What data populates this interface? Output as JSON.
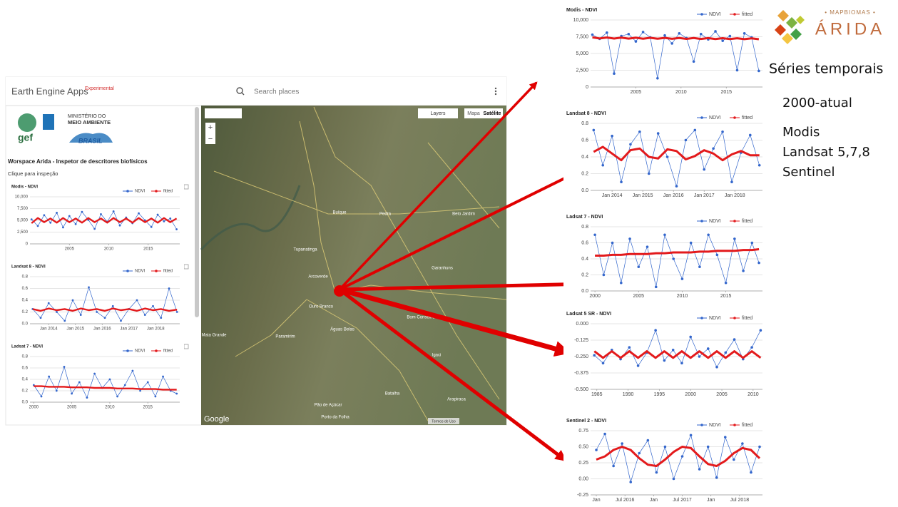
{
  "app": {
    "header": {
      "title": "Earth Engine Apps",
      "badge": "Experimental",
      "search": "Search places"
    },
    "logos": {
      "gef": "gef",
      "ministry_1": "MINISTÉRIO DO",
      "ministry_2": "MEIO AMBIENTE",
      "brasil": "BRASIL"
    },
    "workspace_title": "Worspace Arida - Inspetor de descritores biofísicos",
    "instruction": "Clique para inspeção",
    "charts": [
      {
        "type": "line",
        "title": "Modis - NDVI",
        "x": [
          2000.2,
          2001,
          2001.8,
          2002.6,
          2003.4,
          2004.2,
          2005,
          2005.8,
          2006.6,
          2007.4,
          2008.2,
          2009,
          2009.8,
          2010.6,
          2011.4,
          2012.2,
          2013,
          2013.8,
          2014.6,
          2015.4,
          2016.2,
          2017,
          2017.8,
          2018.6
        ],
        "series": [
          {
            "name": "NDVI",
            "color": "#3366cc",
            "values": [
              5200,
              3800,
              6100,
              4500,
              6600,
              3500,
              5900,
              4200,
              6800,
              5100,
              3200,
              6300,
              4700,
              6900,
              3900,
              5600,
              4400,
              6500,
              5000,
              3600,
              6200,
              4800,
              5400,
              3100
            ]
          },
          {
            "name": "fitted",
            "color": "#e31a1c",
            "values": [
              4400,
              5500,
              4600,
              5400,
              4500,
              5500,
              4600,
              5400,
              4500,
              5500,
              4600,
              5400,
              4500,
              5500,
              4600,
              5400,
              4500,
              5500,
              4600,
              5400,
              4500,
              5500,
              4600,
              5400
            ]
          }
        ],
        "xlim": [
          2000,
          2019
        ],
        "ylim": [
          0,
          10000
        ],
        "xticks": [
          2005,
          2010,
          2015
        ],
        "yticks": [
          0,
          {
            "value": 2500,
            "label": "2,500"
          },
          {
            "value": 5000,
            "label": "5,000"
          },
          {
            "value": 7500,
            "label": "7,500"
          },
          {
            "value": 10000,
            "label": "10,000"
          }
        ],
        "grid": true
      },
      {
        "type": "line",
        "title": "Landsat 8 - NDVI",
        "x": [
          2013.4,
          2013.7,
          2014,
          2014.3,
          2014.6,
          2014.9,
          2015.2,
          2015.5,
          2015.8,
          2016.1,
          2016.4,
          2016.7,
          2017,
          2017.3,
          2017.6,
          2017.9,
          2018.2,
          2018.5,
          2018.8
        ],
        "series": [
          {
            "name": "NDVI",
            "color": "#3366cc",
            "values": [
              0.25,
              0.1,
              0.35,
              0.2,
              0.05,
              0.4,
              0.15,
              0.62,
              0.2,
              0.1,
              0.3,
              0.05,
              0.25,
              0.4,
              0.15,
              0.3,
              0.1,
              0.6,
              0.2
            ]
          },
          {
            "name": "fitted",
            "color": "#e31a1c",
            "values": [
              0.25,
              0.22,
              0.26,
              0.23,
              0.25,
              0.22,
              0.26,
              0.23,
              0.25,
              0.22,
              0.26,
              0.23,
              0.25,
              0.22,
              0.26,
              0.23,
              0.25,
              0.22,
              0.24
            ]
          }
        ],
        "xlim": [
          2013.3,
          2018.9
        ],
        "ylim": [
          0,
          0.8
        ],
        "xticks": [
          {
            "value": 2014,
            "label": "Jan 2014"
          },
          {
            "value": 2015,
            "label": "Jan 2015"
          },
          {
            "value": 2016,
            "label": "Jan 2016"
          },
          {
            "value": 2017,
            "label": "Jan 2017"
          },
          {
            "value": 2018,
            "label": "Jan 2018"
          }
        ],
        "yticks": [
          {
            "value": 0,
            "label": "0.0"
          },
          0.2,
          0.4,
          0.6,
          0.8
        ],
        "grid": true
      },
      {
        "type": "line",
        "title": "Ladsat 7 - NDVI",
        "x": [
          2000,
          2001,
          2002,
          2003,
          2004,
          2005,
          2006,
          2007,
          2008,
          2009,
          2010,
          2011,
          2012,
          2013,
          2014,
          2015,
          2016,
          2017,
          2018,
          2018.8
        ],
        "series": [
          {
            "name": "NDVI",
            "color": "#3366cc",
            "values": [
              0.3,
              0.1,
              0.45,
              0.2,
              0.62,
              0.15,
              0.35,
              0.08,
              0.5,
              0.25,
              0.4,
              0.1,
              0.3,
              0.55,
              0.2,
              0.35,
              0.1,
              0.45,
              0.2,
              0.15
            ]
          },
          {
            "name": "fitted",
            "color": "#e31a1c",
            "values": [
              0.28,
              0.28,
              0.27,
              0.27,
              0.27,
              0.26,
              0.26,
              0.26,
              0.25,
              0.25,
              0.25,
              0.24,
              0.24,
              0.24,
              0.23,
              0.23,
              0.23,
              0.22,
              0.22,
              0.22
            ]
          }
        ],
        "xlim": [
          1999.5,
          2019.2
        ],
        "ylim": [
          0,
          0.8
        ],
        "xticks": [
          2000,
          2005,
          2010,
          2015
        ],
        "yticks": [
          {
            "value": 0,
            "label": "0.0"
          },
          0.2,
          0.4,
          0.6,
          0.8
        ],
        "grid": true
      }
    ]
  },
  "map": {
    "buttons": {
      "layers": "Layers",
      "map": "Mapa",
      "satellite": "Satélite"
    },
    "zoom_in": "+",
    "zoom_out": "−",
    "attribution": "Google",
    "terms": "Termos de Uso",
    "places": [
      {
        "name": "Arcoverde"
      },
      {
        "name": "Pedra"
      },
      {
        "name": "Buíque"
      },
      {
        "name": "Tupanatinga"
      },
      {
        "name": "Garanhuns"
      },
      {
        "name": "Bom Conselho"
      },
      {
        "name": "Águas Belas"
      },
      {
        "name": "Ouro Branco"
      },
      {
        "name": "Mata Grande"
      },
      {
        "name": "Batalha"
      },
      {
        "name": "Arapiraca"
      },
      {
        "name": "Igaci"
      },
      {
        "name": "Pão de Açúcar"
      },
      {
        "name": "Porto da Folha"
      },
      {
        "name": "Paramirim"
      },
      {
        "name": "Belo Jardim"
      }
    ]
  },
  "result_charts": [
    {
      "type": "line",
      "title": "Modis - NDVI",
      "x": [
        2000.2,
        2001,
        2001.8,
        2002.6,
        2003.4,
        2004.2,
        2005,
        2005.8,
        2006.6,
        2007.4,
        2008.2,
        2009,
        2009.8,
        2010.6,
        2011.4,
        2012.2,
        2013,
        2013.8,
        2014.6,
        2015.4,
        2016.2,
        2017,
        2017.8,
        2018.6
      ],
      "series": [
        {
          "name": "NDVI",
          "color": "#3366cc",
          "values": [
            7800,
            7200,
            8100,
            2000,
            7600,
            7900,
            6800,
            8200,
            7400,
            1300,
            7700,
            6500,
            8000,
            7300,
            3800,
            7900,
            7100,
            8300,
            6900,
            7600,
            2500,
            8000,
            7400,
            2400
          ]
        },
        {
          "name": "fitted",
          "color": "#e31a1c",
          "values": [
            7400,
            7250,
            7380,
            7230,
            7360,
            7220,
            7350,
            7210,
            7340,
            7200,
            7330,
            7190,
            7320,
            7180,
            7310,
            7170,
            7300,
            7160,
            7290,
            7150,
            7280,
            7140,
            7270,
            7130
          ]
        }
      ],
      "xlim": [
        2000,
        2019
      ],
      "ylim": [
        0,
        10000
      ],
      "xticks": [
        2005,
        2010,
        2015
      ],
      "yticks": [
        0,
        {
          "value": 2500,
          "label": "2,500"
        },
        {
          "value": 5000,
          "label": "5,000"
        },
        {
          "value": 7500,
          "label": "7,500"
        },
        {
          "value": 10000,
          "label": "10,000"
        }
      ],
      "grid": true
    },
    {
      "type": "line",
      "title": "Landsat 8 - NDVI",
      "x": [
        2013.4,
        2013.7,
        2014,
        2014.3,
        2014.6,
        2014.9,
        2015.2,
        2015.5,
        2015.8,
        2016.1,
        2016.4,
        2016.7,
        2017,
        2017.3,
        2017.6,
        2017.9,
        2018.2,
        2018.5,
        2018.8
      ],
      "series": [
        {
          "name": "NDVI",
          "color": "#3366cc",
          "values": [
            0.72,
            0.3,
            0.65,
            0.1,
            0.55,
            0.7,
            0.2,
            0.68,
            0.4,
            0.05,
            0.6,
            0.72,
            0.25,
            0.5,
            0.7,
            0.1,
            0.45,
            0.66,
            0.3
          ]
        },
        {
          "name": "fitted",
          "color": "#e31a1c",
          "values": [
            0.46,
            0.52,
            0.44,
            0.36,
            0.48,
            0.5,
            0.4,
            0.38,
            0.49,
            0.47,
            0.37,
            0.41,
            0.48,
            0.44,
            0.36,
            0.43,
            0.47,
            0.42,
            0.42
          ]
        }
      ],
      "xlim": [
        2013.3,
        2018.9
      ],
      "ylim": [
        0,
        0.8
      ],
      "xticks": [
        {
          "value": 2014,
          "label": "Jan 2014"
        },
        {
          "value": 2015,
          "label": "Jan 2015"
        },
        {
          "value": 2016,
          "label": "Jan 2016"
        },
        {
          "value": 2017,
          "label": "Jan 2017"
        },
        {
          "value": 2018,
          "label": "Jan 2018"
        }
      ],
      "yticks": [
        {
          "value": 0,
          "label": "0.0"
        },
        0.2,
        0.4,
        0.6,
        0.8
      ],
      "grid": true
    },
    {
      "type": "line",
      "title": "Ladsat 7 - NDVI",
      "x": [
        2000,
        2001,
        2002,
        2003,
        2004,
        2005,
        2006,
        2007,
        2008,
        2009,
        2010,
        2011,
        2012,
        2013,
        2014,
        2015,
        2016,
        2017,
        2018,
        2018.8
      ],
      "series": [
        {
          "name": "NDVI",
          "color": "#3366cc",
          "values": [
            0.7,
            0.2,
            0.6,
            0.1,
            0.65,
            0.3,
            0.55,
            0.05,
            0.7,
            0.4,
            0.15,
            0.6,
            0.3,
            0.7,
            0.45,
            0.1,
            0.65,
            0.25,
            0.6,
            0.35
          ]
        },
        {
          "name": "fitted",
          "color": "#e31a1c",
          "values": [
            0.44,
            0.44,
            0.45,
            0.45,
            0.46,
            0.46,
            0.46,
            0.47,
            0.47,
            0.48,
            0.48,
            0.48,
            0.49,
            0.49,
            0.5,
            0.5,
            0.5,
            0.51,
            0.51,
            0.52
          ]
        }
      ],
      "xlim": [
        1999.5,
        2019.2
      ],
      "ylim": [
        0,
        0.8
      ],
      "xticks": [
        2000,
        2005,
        2010,
        2015
      ],
      "yticks": [
        {
          "value": 0,
          "label": "0.0"
        },
        0.2,
        0.4,
        0.6,
        0.8
      ],
      "grid": true
    },
    {
      "type": "line",
      "title": "Ladsat 5 SR - NDVI",
      "x": [
        1984.6,
        1986,
        1987.4,
        1988.8,
        1990.2,
        1991.6,
        1993,
        1994.4,
        1995.8,
        1997.2,
        1998.6,
        2000,
        2001.4,
        2002.8,
        2004.2,
        2005.6,
        2007,
        2008.4,
        2009.8,
        2011.2
      ],
      "series": [
        {
          "name": "NDVI",
          "color": "#3366cc",
          "values": [
            -0.24,
            -0.3,
            -0.2,
            -0.27,
            -0.18,
            -0.32,
            -0.22,
            -0.05,
            -0.28,
            -0.2,
            -0.3,
            -0.1,
            -0.25,
            -0.19,
            -0.33,
            -0.22,
            -0.12,
            -0.27,
            -0.18,
            -0.05
          ]
        },
        {
          "name": "fitted",
          "color": "#e31a1c",
          "values": [
            -0.21,
            -0.26,
            -0.21,
            -0.26,
            -0.21,
            -0.26,
            -0.21,
            -0.26,
            -0.21,
            -0.26,
            -0.21,
            -0.26,
            -0.21,
            -0.26,
            -0.21,
            -0.26,
            -0.21,
            -0.26,
            -0.21,
            -0.26
          ]
        }
      ],
      "xlim": [
        1984,
        2011.5
      ],
      "ylim": [
        -0.5,
        0
      ],
      "xticks": [
        1985,
        1990,
        1995,
        2000,
        2005,
        2010
      ],
      "yticks": [
        {
          "value": 0,
          "label": "0.000"
        },
        -0.125,
        {
          "value": -0.25,
          "label": "-0.250"
        },
        -0.375,
        {
          "value": -0.5,
          "label": "-0.500"
        }
      ],
      "grid": true
    },
    {
      "type": "line",
      "title": "Sentinel 2 - NDVI",
      "x": [
        2016,
        2016.15,
        2016.3,
        2016.45,
        2016.6,
        2016.75,
        2016.9,
        2017.05,
        2017.2,
        2017.35,
        2017.5,
        2017.65,
        2017.8,
        2017.95,
        2018.1,
        2018.25,
        2018.4,
        2018.55,
        2018.7,
        2018.85
      ],
      "series": [
        {
          "name": "NDVI",
          "color": "#3366cc",
          "values": [
            0.45,
            0.7,
            0.2,
            0.55,
            -0.05,
            0.4,
            0.6,
            0.1,
            0.5,
            0,
            0.35,
            0.68,
            0.15,
            0.5,
            0.02,
            0.65,
            0.3,
            0.55,
            0.1,
            0.5
          ]
        },
        {
          "name": "fitted",
          "color": "#e31a1c",
          "values": [
            0.3,
            0.35,
            0.45,
            0.5,
            0.45,
            0.32,
            0.22,
            0.2,
            0.3,
            0.42,
            0.5,
            0.48,
            0.35,
            0.23,
            0.2,
            0.28,
            0.4,
            0.48,
            0.45,
            0.32
          ]
        }
      ],
      "xlim": [
        2015.9,
        2018.9
      ],
      "ylim": [
        -0.25,
        0.75
      ],
      "xticks": [
        {
          "value": 2016,
          "label": "Jan"
        },
        {
          "value": 2016.5,
          "label": "Jul 2016"
        },
        {
          "value": 2017,
          "label": "Jan"
        },
        {
          "value": 2017.5,
          "label": "Jul 2017"
        },
        {
          "value": 2018,
          "label": "Jan"
        },
        {
          "value": 2018.5,
          "label": "Jul 2018"
        }
      ],
      "yticks": [
        -0.25,
        {
          "value": 0,
          "label": "0.00"
        },
        0.25,
        {
          "value": 0.5,
          "label": "0.50"
        },
        0.75
      ],
      "grid": true
    }
  ],
  "brand": {
    "top": "• MAPBIOMAS •",
    "name": "ÁRIDA"
  },
  "notes": {
    "heading": "Séries temporais",
    "period": "2000-atual",
    "sensors": [
      "Modis",
      "Landsat 5,7,8",
      "Sentinel"
    ]
  }
}
